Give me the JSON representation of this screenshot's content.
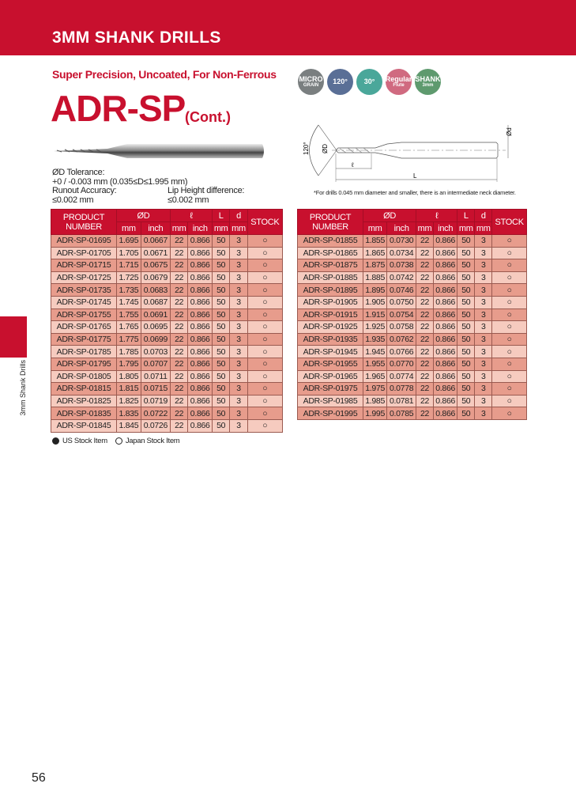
{
  "header": {
    "title": "3MM SHANK DRILLS"
  },
  "subtitle": "Super Precision, Uncoated, For Non-Ferrous",
  "model": "ADR-SP",
  "model_suffix": "(Cont.)",
  "badges": [
    {
      "icon": "micro-grain-icon",
      "line1": "MICRO",
      "line2": "GRAIN",
      "color": "#7a7f80"
    },
    {
      "icon": "point-angle-icon",
      "line1": "120°",
      "line2": "",
      "color": "#5a6f96"
    },
    {
      "icon": "helix-angle-icon",
      "line1": "30°",
      "line2": "",
      "color": "#4aa79a"
    },
    {
      "icon": "flute-icon",
      "line1": "Regular",
      "line2": "Flute",
      "color": "#d06a80"
    },
    {
      "icon": "shank-icon",
      "line1": "SHANK",
      "line2": "3mm",
      "color": "#5e9a6e"
    }
  ],
  "specs": {
    "tol_label": "ØD Tolerance:",
    "tol_value": "+0 / -0.003 mm  (0.035≤D≤1.995 mm)",
    "runout_label": "Runout Accuracy:",
    "runout_value": "≤0.002 mm",
    "lip_label": "Lip Height difference:",
    "lip_value": "≤0.002 mm"
  },
  "diagram": {
    "angle": "120°",
    "d_label": "ØD",
    "shank_label": "Ød",
    "flute_label": "ℓ",
    "length_label": "L"
  },
  "note": "*For drills 0.045 mm diameter and smaller, there is an intermediate neck diameter.",
  "table_headers": {
    "product": "PRODUCT",
    "number": "NUMBER",
    "od": "ØD",
    "l": "ℓ",
    "L": "L",
    "d": "d",
    "stock": "STOCK",
    "mm": "mm",
    "inch": "inch"
  },
  "left_rows": [
    [
      "ADR-SP-01695",
      "1.695",
      "0.0667",
      "22",
      "0.866",
      "50",
      "3",
      "○"
    ],
    [
      "ADR-SP-01705",
      "1.705",
      "0.0671",
      "22",
      "0.866",
      "50",
      "3",
      "○"
    ],
    [
      "ADR-SP-01715",
      "1.715",
      "0.0675",
      "22",
      "0.866",
      "50",
      "3",
      "○"
    ],
    [
      "ADR-SP-01725",
      "1.725",
      "0.0679",
      "22",
      "0.866",
      "50",
      "3",
      "○"
    ],
    [
      "ADR-SP-01735",
      "1.735",
      "0.0683",
      "22",
      "0.866",
      "50",
      "3",
      "○"
    ],
    [
      "ADR-SP-01745",
      "1.745",
      "0.0687",
      "22",
      "0.866",
      "50",
      "3",
      "○"
    ],
    [
      "ADR-SP-01755",
      "1.755",
      "0.0691",
      "22",
      "0.866",
      "50",
      "3",
      "○"
    ],
    [
      "ADR-SP-01765",
      "1.765",
      "0.0695",
      "22",
      "0.866",
      "50",
      "3",
      "○"
    ],
    [
      "ADR-SP-01775",
      "1.775",
      "0.0699",
      "22",
      "0.866",
      "50",
      "3",
      "○"
    ],
    [
      "ADR-SP-01785",
      "1.785",
      "0.0703",
      "22",
      "0.866",
      "50",
      "3",
      "○"
    ],
    [
      "ADR-SP-01795",
      "1.795",
      "0.0707",
      "22",
      "0.866",
      "50",
      "3",
      "○"
    ],
    [
      "ADR-SP-01805",
      "1.805",
      "0.0711",
      "22",
      "0.866",
      "50",
      "3",
      "○"
    ],
    [
      "ADR-SP-01815",
      "1.815",
      "0.0715",
      "22",
      "0.866",
      "50",
      "3",
      "○"
    ],
    [
      "ADR-SP-01825",
      "1.825",
      "0.0719",
      "22",
      "0.866",
      "50",
      "3",
      "○"
    ],
    [
      "ADR-SP-01835",
      "1.835",
      "0.0722",
      "22",
      "0.866",
      "50",
      "3",
      "○"
    ],
    [
      "ADR-SP-01845",
      "1.845",
      "0.0726",
      "22",
      "0.866",
      "50",
      "3",
      "○"
    ]
  ],
  "right_rows": [
    [
      "ADR-SP-01855",
      "1.855",
      "0.0730",
      "22",
      "0.866",
      "50",
      "3",
      "○"
    ],
    [
      "ADR-SP-01865",
      "1.865",
      "0.0734",
      "22",
      "0.866",
      "50",
      "3",
      "○"
    ],
    [
      "ADR-SP-01875",
      "1.875",
      "0.0738",
      "22",
      "0.866",
      "50",
      "3",
      "○"
    ],
    [
      "ADR-SP-01885",
      "1.885",
      "0.0742",
      "22",
      "0.866",
      "50",
      "3",
      "○"
    ],
    [
      "ADR-SP-01895",
      "1.895",
      "0.0746",
      "22",
      "0.866",
      "50",
      "3",
      "○"
    ],
    [
      "ADR-SP-01905",
      "1.905",
      "0.0750",
      "22",
      "0.866",
      "50",
      "3",
      "○"
    ],
    [
      "ADR-SP-01915",
      "1.915",
      "0.0754",
      "22",
      "0.866",
      "50",
      "3",
      "○"
    ],
    [
      "ADR-SP-01925",
      "1.925",
      "0.0758",
      "22",
      "0.866",
      "50",
      "3",
      "○"
    ],
    [
      "ADR-SP-01935",
      "1.935",
      "0.0762",
      "22",
      "0.866",
      "50",
      "3",
      "○"
    ],
    [
      "ADR-SP-01945",
      "1.945",
      "0.0766",
      "22",
      "0.866",
      "50",
      "3",
      "○"
    ],
    [
      "ADR-SP-01955",
      "1.955",
      "0.0770",
      "22",
      "0.866",
      "50",
      "3",
      "○"
    ],
    [
      "ADR-SP-01965",
      "1.965",
      "0.0774",
      "22",
      "0.866",
      "50",
      "3",
      "○"
    ],
    [
      "ADR-SP-01975",
      "1.975",
      "0.0778",
      "22",
      "0.866",
      "50",
      "3",
      "○"
    ],
    [
      "ADR-SP-01985",
      "1.985",
      "0.0781",
      "22",
      "0.866",
      "50",
      "3",
      "○"
    ],
    [
      "ADR-SP-01995",
      "1.995",
      "0.0785",
      "22",
      "0.866",
      "50",
      "3",
      "○"
    ]
  ],
  "legend": {
    "us": "US Stock Item",
    "japan": "Japan Stock Item"
  },
  "side_tab": "3mm Shank Drills",
  "page_number": "56",
  "colors": {
    "brand": "#c8102e",
    "row_dark": "#e79c8c",
    "row_light": "#f6cbbf"
  }
}
